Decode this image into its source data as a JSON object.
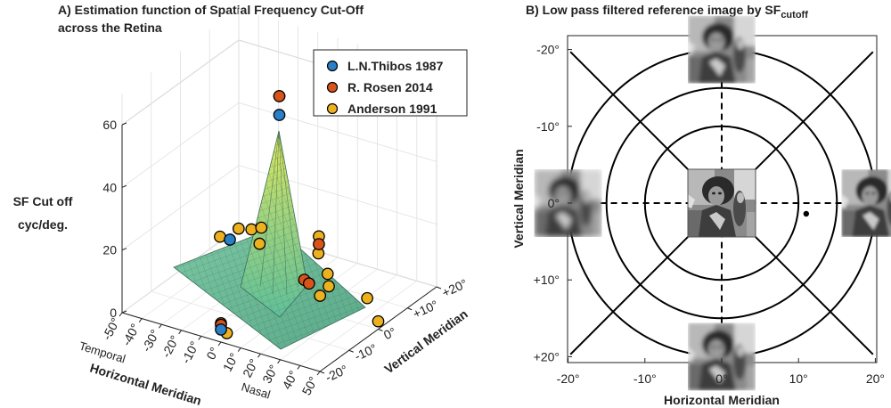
{
  "chart_data": [
    {
      "type": "surface3d",
      "title_line1": "A) Estimation function of Spatial Frequency Cut-Off",
      "title_line2": "across the Retina",
      "zlabel_line1": "SF Cut off",
      "zlabel_line2": "cyc/deg.",
      "xlabel": "Horizontal Meridian",
      "ylabel": "Vertical Meridian",
      "x_side_labels": {
        "left": "Temporal",
        "right": "Nasal"
      },
      "x_ticks": [
        "-50°",
        "-40°",
        "-30°",
        "-20°",
        "-10°",
        "0°",
        "10°",
        "20°",
        "30°",
        "40°",
        "50°"
      ],
      "y_ticks": [
        "-20°",
        "-10°",
        "0°",
        "+10°",
        "+20°"
      ],
      "z_ticks": [
        "0",
        "20",
        "40",
        "60"
      ],
      "xlim": [
        -50,
        50
      ],
      "ylim": [
        -20,
        20
      ],
      "zlim": [
        0,
        70
      ],
      "legend": [
        {
          "name": "L.N.Thibos  1987",
          "color": "#2a7fc7"
        },
        {
          "name": "R. Rosen 2014",
          "color": "#d9541a"
        },
        {
          "name": "Anderson 1991",
          "color": "#edb120"
        }
      ],
      "series": [
        {
          "name": "L.N.Thibos  1987",
          "points": [
            [
              0,
              0,
              59
            ],
            [
              -25,
              0,
              14.5
            ],
            [
              0,
              -20,
              4
            ]
          ]
        },
        {
          "name": "R. Rosen 2014",
          "points": [
            [
              0,
              0,
              65
            ],
            [
              20,
              0,
              21.5
            ],
            [
              20,
              -5,
              13.5
            ],
            [
              15,
              0,
              8
            ],
            [
              0,
              -20,
              5.5
            ]
          ]
        },
        {
          "name": "Anderson 1991",
          "points": [
            [
              0,
              0,
              65
            ],
            [
              -30,
              0,
              14.5
            ],
            [
              -25,
              3,
              16
            ],
            [
              -20,
              4,
              16
            ],
            [
              -15,
              4,
              17.5
            ],
            [
              -10,
              0,
              16
            ],
            [
              20,
              0,
              24
            ],
            [
              20,
              3,
              10
            ],
            [
              25,
              0,
              9
            ],
            [
              25,
              -3,
              8
            ],
            [
              40,
              3,
              6
            ],
            [
              50,
              0,
              2.5
            ],
            [
              0,
              -18,
              1.5
            ],
            [
              0,
              -20,
              6
            ],
            [
              5,
              10,
              9
            ]
          ]
        }
      ]
    },
    {
      "type": "polar_diagram",
      "title": "B) Low pass filtered reference image by SF",
      "title_sub": "cutoff",
      "xlabel": "Horizontal Meridian",
      "ylabel": "Vertical Meridian",
      "x_ticks": [
        "-20°",
        "-10°",
        "0°",
        "10°",
        "20°"
      ],
      "y_ticks": [
        "-20°",
        "-10°",
        "0°",
        "+10°",
        "+20°"
      ],
      "rings_deg": [
        3.5,
        10,
        15,
        20
      ],
      "blind_spot_deg": [
        11,
        0
      ],
      "images": [
        {
          "name": "center",
          "pos": [
            0,
            0
          ],
          "blur": 0
        },
        {
          "name": "top",
          "pos": [
            0,
            -20
          ],
          "blur": 2.4
        },
        {
          "name": "bottom",
          "pos": [
            0,
            20
          ],
          "blur": 2.4
        },
        {
          "name": "left",
          "pos": [
            -20,
            0
          ],
          "blur": 3.2
        },
        {
          "name": "right",
          "pos": [
            20,
            0
          ],
          "blur": 1.6
        }
      ]
    }
  ]
}
